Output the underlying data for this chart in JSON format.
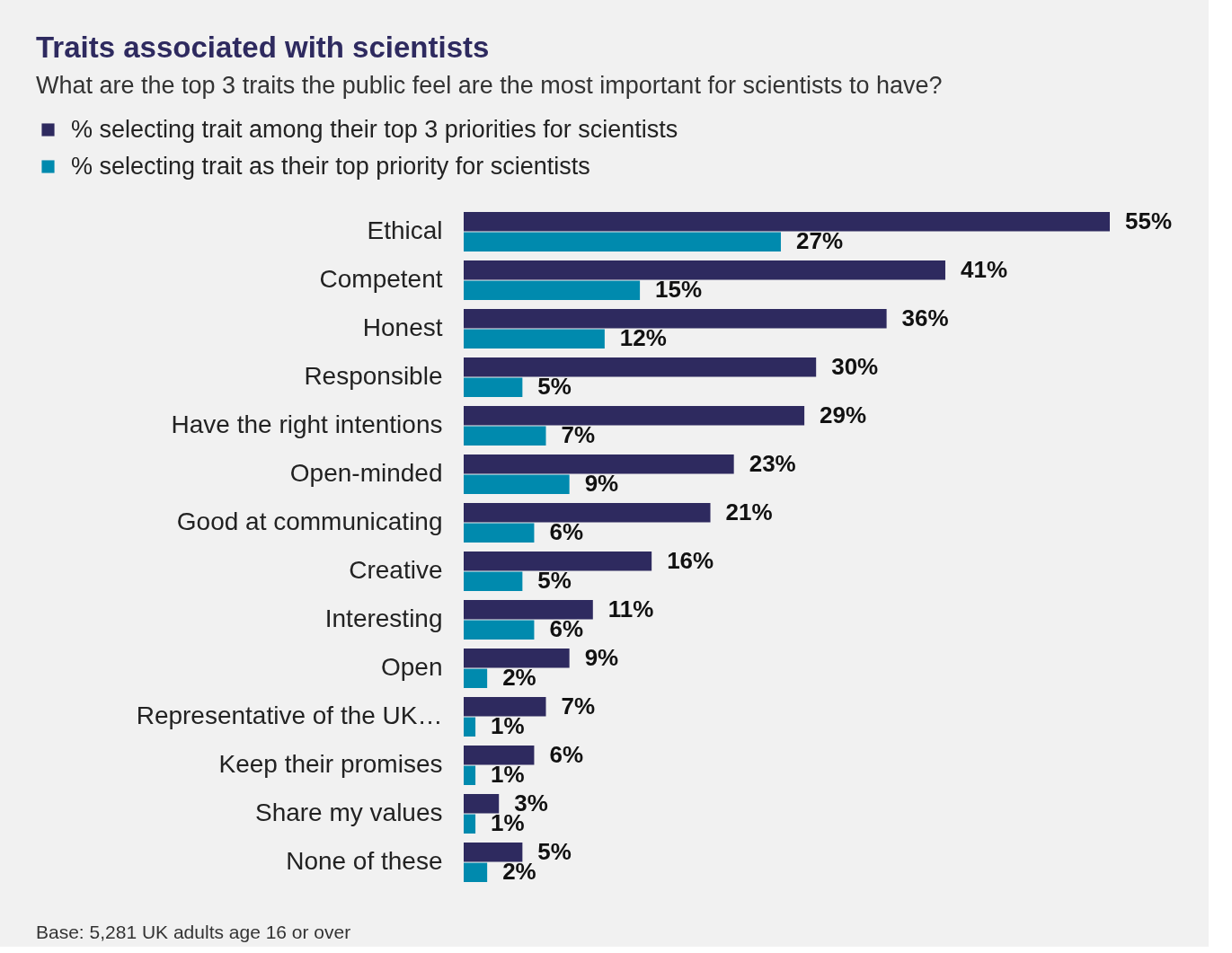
{
  "chart_data": {
    "type": "bar",
    "orientation": "horizontal",
    "title": "Traits associated with scientists",
    "subtitle": "What are the top 3 traits the public feel are the most important for scientists to have?",
    "categories": [
      "Ethical",
      "Competent",
      "Honest",
      "Responsible",
      "Have the right intentions",
      "Open-minded",
      "Good at communicating",
      "Creative",
      "Interesting",
      "Open",
      "Representative of the UK…",
      "Keep their promises",
      "Share my values",
      "None of these"
    ],
    "series": [
      {
        "name": "% selecting trait among their top 3 priorities for scientists",
        "color": "#2e2a5f",
        "values": [
          55,
          41,
          36,
          30,
          29,
          23,
          21,
          16,
          11,
          9,
          7,
          6,
          3,
          5
        ],
        "value_labels": [
          "55%",
          "41%",
          "36%",
          "30%",
          "29%",
          "23%",
          "21%",
          "16%",
          "11%",
          "9%",
          "7%",
          "6%",
          "3%",
          "5%"
        ]
      },
      {
        "name": "% selecting trait as their top priority for scientists",
        "color": "#008aae",
        "values": [
          27,
          15,
          12,
          5,
          7,
          9,
          6,
          5,
          6,
          2,
          1,
          1,
          1,
          2
        ],
        "value_labels": [
          "27%",
          "15%",
          "12%",
          "5%",
          "7%",
          "9%",
          "6%",
          "5%",
          "6%",
          "2%",
          "1%",
          "1%",
          "1%",
          "2%"
        ]
      }
    ],
    "legend": "top left",
    "annotations": [
      "Base: 5,281 UK adults age 16 or over"
    ]
  }
}
